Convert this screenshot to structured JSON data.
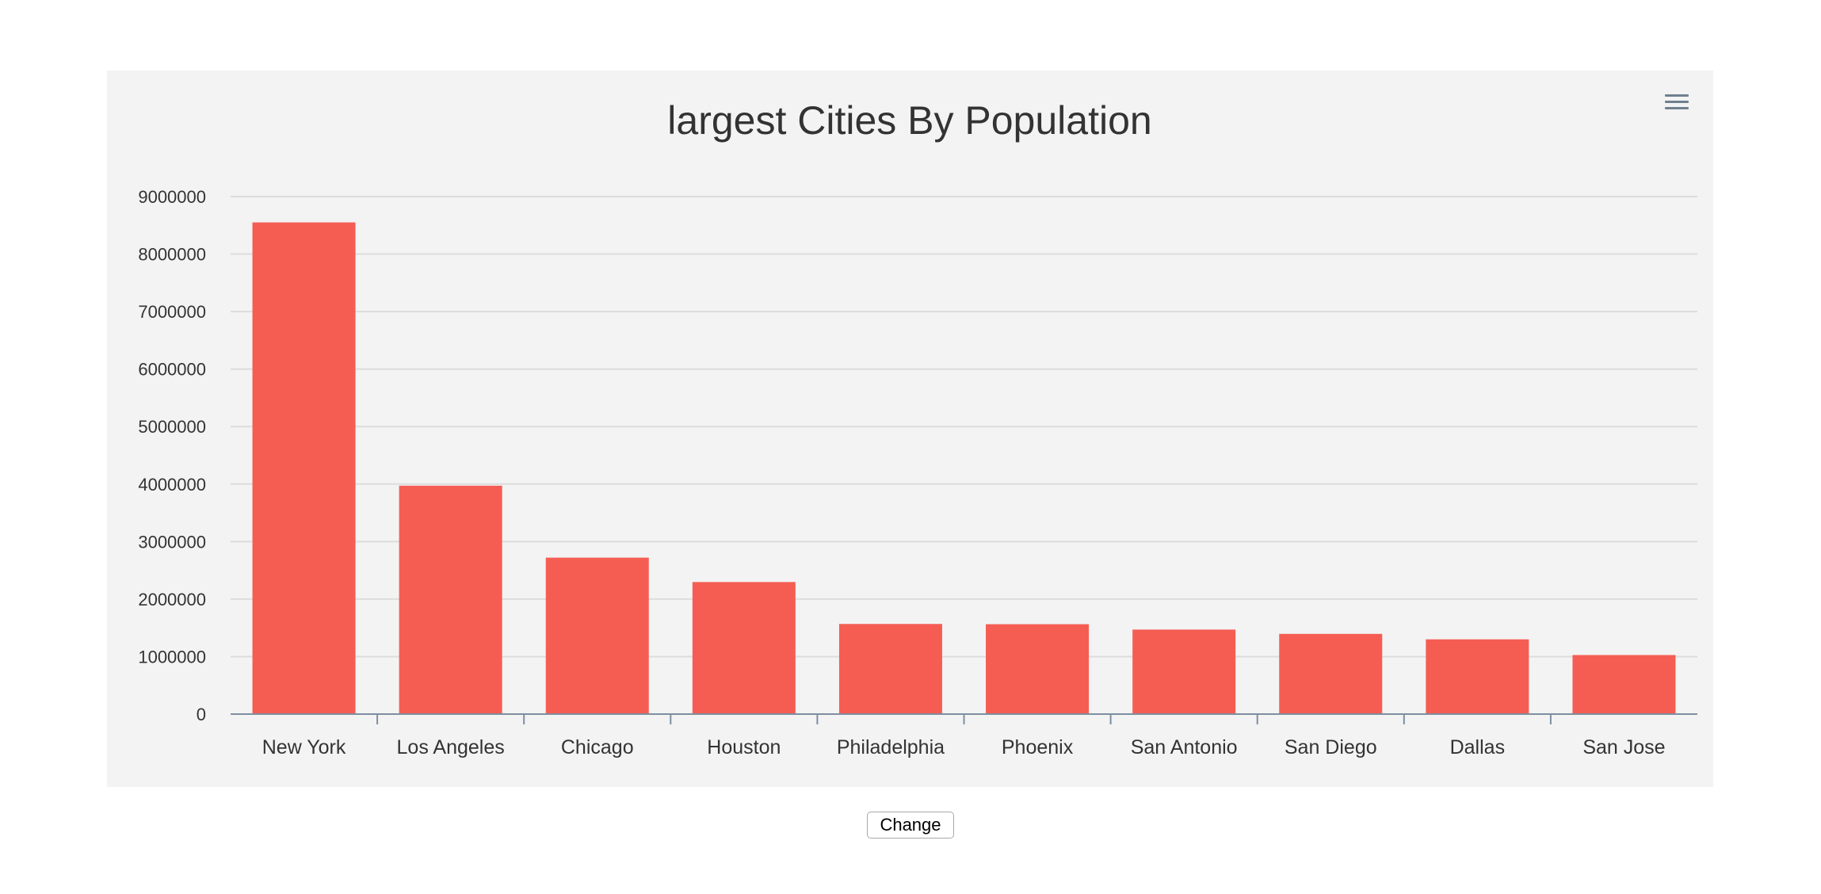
{
  "controls": {
    "change_label": "Change",
    "menu_icon": "hamburger-menu-icon"
  },
  "colors": {
    "bar": "#f55d53",
    "panel_background": "#f3f3f3",
    "gridline": "#dcdcdc",
    "axis": "#7d8fa0"
  },
  "chart_data": {
    "type": "bar",
    "title": "largest Cities By Population",
    "xlabel": "",
    "ylabel": "",
    "categories": [
      "New York",
      "Los Angeles",
      "Chicago",
      "Houston",
      "Philadelphia",
      "Phoenix",
      "San Antonio",
      "San Diego",
      "Dallas",
      "San Jose"
    ],
    "values": [
      8550405,
      3971883,
      2720546,
      2296224,
      1567442,
      1563025,
      1469845,
      1394928,
      1300092,
      1026908
    ],
    "ylim": [
      0,
      9000000
    ],
    "yticks": [
      "0",
      "1000000",
      "2000000",
      "3000000",
      "4000000",
      "5000000",
      "6000000",
      "7000000",
      "8000000",
      "9000000"
    ],
    "grid": true,
    "legend": "none"
  }
}
